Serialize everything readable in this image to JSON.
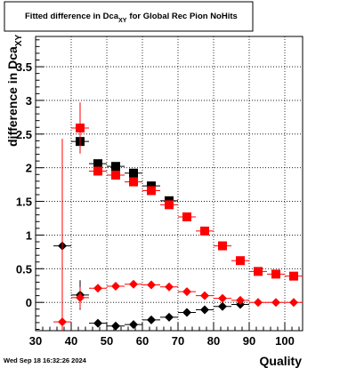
{
  "chart_data": {
    "type": "scatter",
    "title_main": "Fitted difference in Dca",
    "title_sub": "XY",
    "title_rest": "for Global Rec Pion NoHits",
    "ylabel_main": "difference in Dca",
    "ylabel_sub": "XY",
    "xlabel": "Quality",
    "xlim": [
      30,
      105
    ],
    "ylim": [
      -0.42,
      3.95
    ],
    "xticks": [
      30,
      40,
      50,
      60,
      70,
      80,
      90,
      100
    ],
    "xtick_labels": [
      "30",
      "40",
      "50",
      "60",
      "70",
      "80",
      "90",
      "100"
    ],
    "yticks": [
      0,
      0.5,
      1,
      1.5,
      2,
      2.5,
      3,
      3.5
    ],
    "ytick_labels": [
      "0",
      "0.5",
      "1",
      "1.5",
      "2",
      "2.5",
      "3",
      "3.5"
    ],
    "grid": true,
    "timestamp": "Wed Sep 18 16:32:26 2024",
    "series": [
      {
        "marker": "square",
        "color": "#000000",
        "points": [
          {
            "x": 42.5,
            "y": 2.39,
            "err": 0
          },
          {
            "x": 47.5,
            "y": 2.06,
            "err": 0
          },
          {
            "x": 52.5,
            "y": 2.02,
            "err": 0
          },
          {
            "x": 57.5,
            "y": 1.92,
            "err": 0
          },
          {
            "x": 62.5,
            "y": 1.73,
            "err": 0
          },
          {
            "x": 67.5,
            "y": 1.51,
            "err": 0
          }
        ]
      },
      {
        "marker": "square",
        "color": "#ff0000",
        "points": [
          {
            "x": 42.5,
            "y": 2.59,
            "err": 0.38
          },
          {
            "x": 47.5,
            "y": 1.95,
            "err": 0
          },
          {
            "x": 52.5,
            "y": 1.89,
            "err": 0
          },
          {
            "x": 57.5,
            "y": 1.79,
            "err": 0
          },
          {
            "x": 62.5,
            "y": 1.66,
            "err": 0
          },
          {
            "x": 67.5,
            "y": 1.45,
            "err": 0
          },
          {
            "x": 72.5,
            "y": 1.27,
            "err": 0
          },
          {
            "x": 77.5,
            "y": 1.06,
            "err": 0
          },
          {
            "x": 82.5,
            "y": 0.84,
            "err": 0
          },
          {
            "x": 87.5,
            "y": 0.62,
            "err": 0
          },
          {
            "x": 92.5,
            "y": 0.46,
            "err": 0
          },
          {
            "x": 97.5,
            "y": 0.42,
            "err": 0
          },
          {
            "x": 102.5,
            "y": 0.39,
            "err": 0
          }
        ]
      },
      {
        "marker": "diamond",
        "color": "#000000",
        "points": [
          {
            "x": 37.5,
            "y": 0.84,
            "err": 0
          },
          {
            "x": 42.5,
            "y": 0.11,
            "err": 0.22
          },
          {
            "x": 47.5,
            "y": -0.31,
            "err": 0
          },
          {
            "x": 52.5,
            "y": -0.35,
            "err": 0
          },
          {
            "x": 57.5,
            "y": -0.33,
            "err": 0
          },
          {
            "x": 62.5,
            "y": -0.26,
            "err": 0
          },
          {
            "x": 67.5,
            "y": -0.22,
            "err": 0
          },
          {
            "x": 72.5,
            "y": -0.15,
            "err": 0
          },
          {
            "x": 77.5,
            "y": -0.11,
            "err": 0
          },
          {
            "x": 82.5,
            "y": -0.06,
            "err": 0
          },
          {
            "x": 87.5,
            "y": -0.03,
            "err": 0
          }
        ]
      },
      {
        "marker": "diamond",
        "color": "#ff0000",
        "points": [
          {
            "x": 37.5,
            "y": -0.29,
            "err": 2.72
          },
          {
            "x": 42.5,
            "y": 0.07,
            "err": 0.16
          },
          {
            "x": 47.5,
            "y": 0.21,
            "err": 0
          },
          {
            "x": 52.5,
            "y": 0.24,
            "err": 0
          },
          {
            "x": 57.5,
            "y": 0.27,
            "err": 0
          },
          {
            "x": 62.5,
            "y": 0.26,
            "err": 0
          },
          {
            "x": 67.5,
            "y": 0.23,
            "err": 0
          },
          {
            "x": 72.5,
            "y": 0.16,
            "err": 0
          },
          {
            "x": 77.5,
            "y": 0.1,
            "err": 0
          },
          {
            "x": 82.5,
            "y": 0.06,
            "err": 0
          },
          {
            "x": 87.5,
            "y": 0.03,
            "err": 0
          },
          {
            "x": 92.5,
            "y": 0.0,
            "err": 0
          },
          {
            "x": 97.5,
            "y": 0.0,
            "err": 0
          },
          {
            "x": 102.5,
            "y": 0.0,
            "err": 0
          }
        ]
      }
    ]
  }
}
